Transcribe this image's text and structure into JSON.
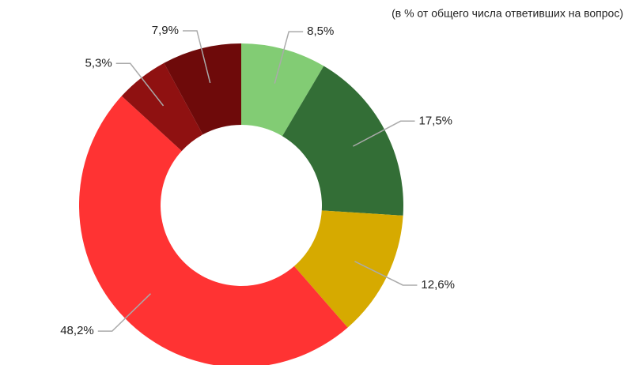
{
  "chart_data": {
    "type": "donut",
    "subtitle": "(в % от  общего числа ответивших на вопрос)",
    "values": [
      8.5,
      17.5,
      12.6,
      48.2,
      5.3,
      7.9
    ],
    "value_labels": [
      "8,5%",
      "17,5%",
      "12,6%",
      "48,2%",
      "5,3%",
      "7,9%"
    ],
    "colors": [
      "#82cc74",
      "#336e36",
      "#d6aa00",
      "#ff3333",
      "#8f1111",
      "#6e0a0a"
    ]
  }
}
